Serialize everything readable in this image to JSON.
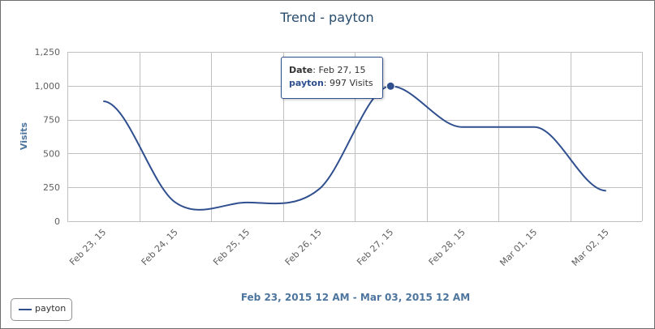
{
  "chart_data": {
    "type": "line",
    "title": "Trend - payton",
    "ylabel": "Visits",
    "xlabel": "Feb 23, 2015 12 AM - Mar 03, 2015 12 AM",
    "categories": [
      "Feb 23, 15",
      "Feb 24, 15",
      "Feb 25, 15",
      "Feb 26, 15",
      "Feb 27, 15",
      "Feb 28, 15",
      "Mar 01, 15",
      "Mar 02, 15"
    ],
    "y_ticks": [
      "0",
      "250",
      "500",
      "750",
      "1,000",
      "1,250"
    ],
    "ylim": [
      0,
      1250
    ],
    "grid": true,
    "legend_placement": "bottom-left",
    "series": [
      {
        "name": "payton",
        "color": "#2f4f8f",
        "values": [
          885,
          140,
          138,
          235,
          997,
          695,
          695,
          225
        ]
      }
    ],
    "tooltip": {
      "date_key": "Date",
      "date_value": "Feb 27, 15",
      "series_key": "payton",
      "series_value": "997 Visits",
      "point_index": 4
    }
  }
}
